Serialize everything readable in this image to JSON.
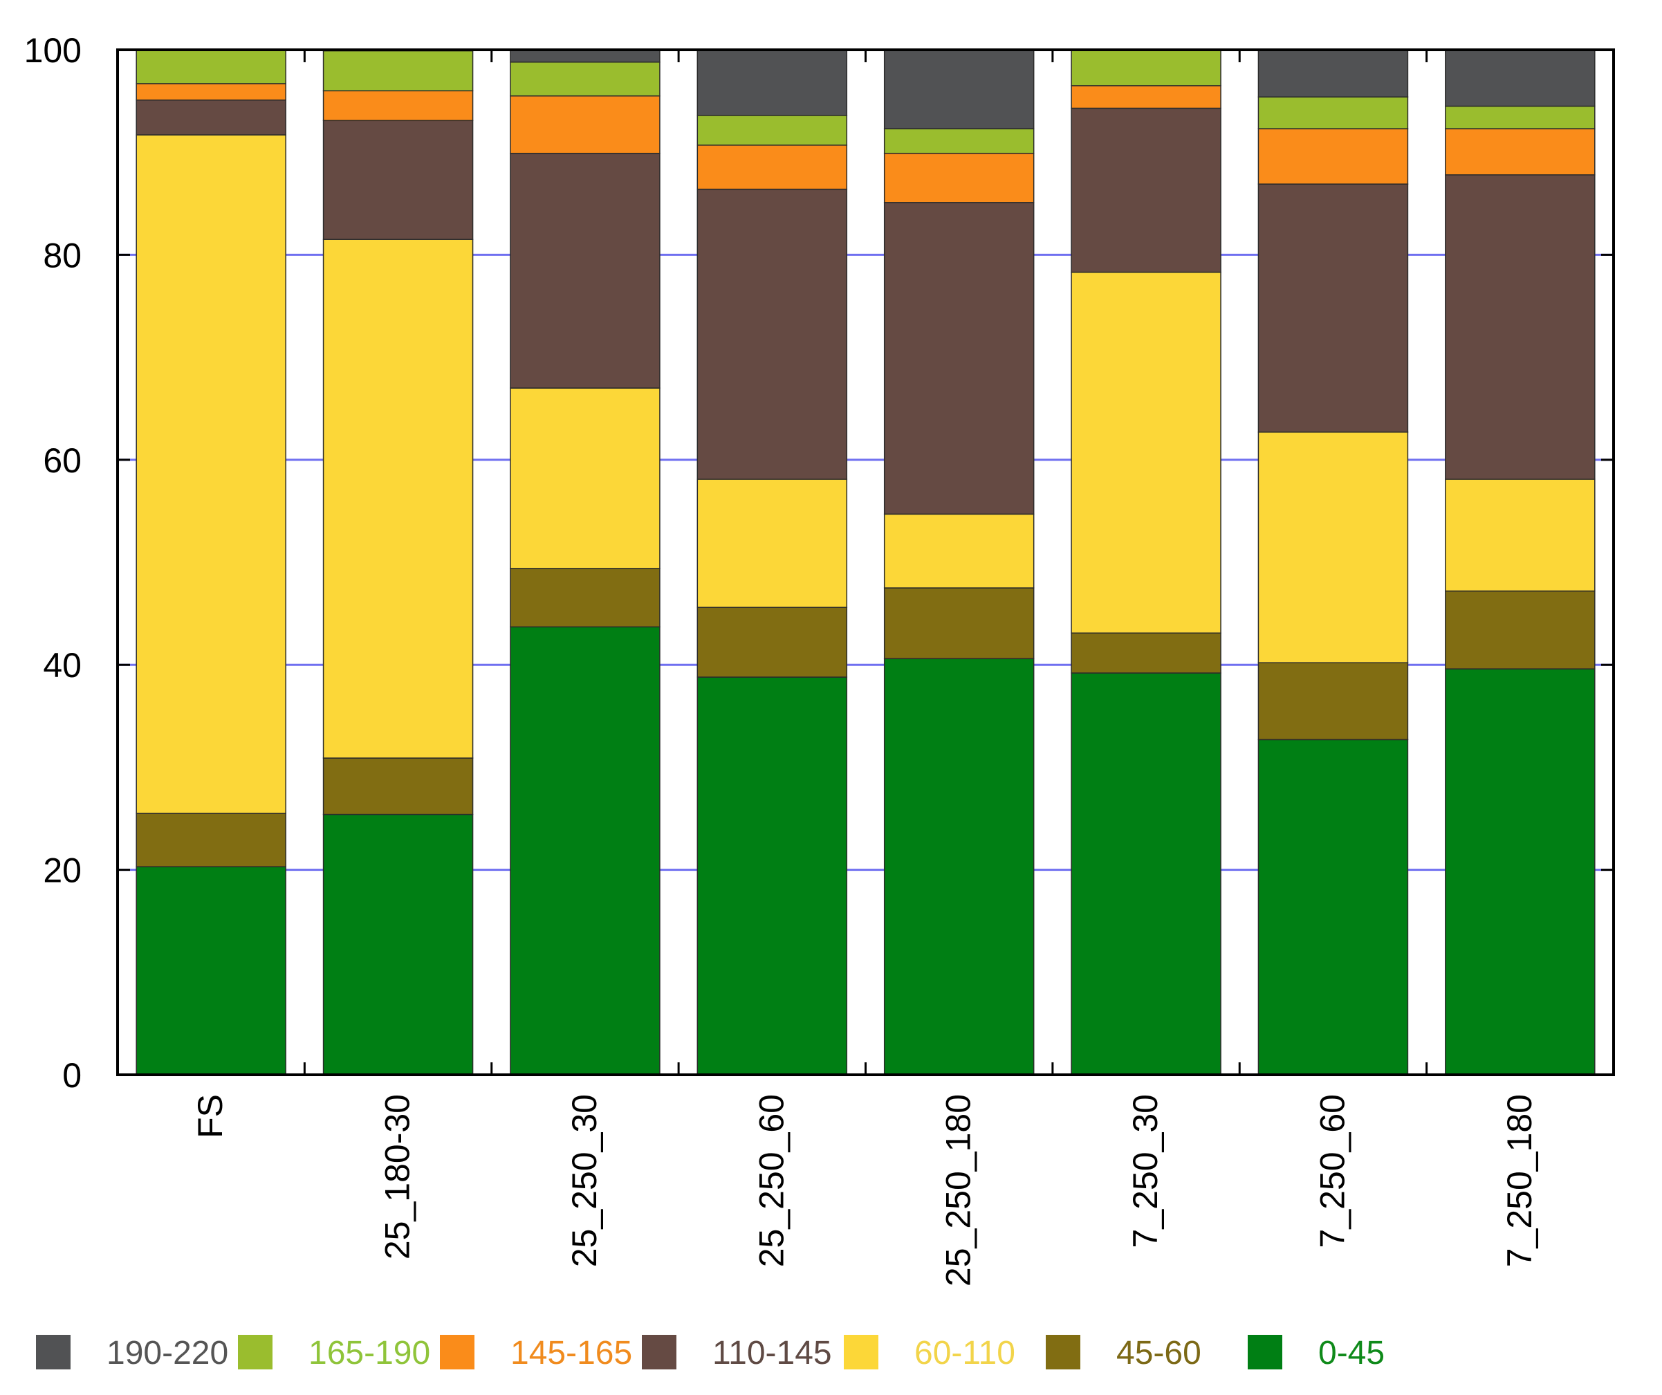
{
  "chart_data": {
    "type": "bar",
    "stacked": true,
    "title": "",
    "xlabel": "",
    "ylabel": "",
    "ylim": [
      0,
      100
    ],
    "yticks": [
      0,
      20,
      40,
      60,
      80,
      100
    ],
    "grid": true,
    "legend_position": "bottom",
    "categories": [
      "FS",
      "25_180-30",
      "25_250_30",
      "25_250_60",
      "25_250_180",
      "7_250_30",
      "7_250_60",
      "7_250_180"
    ],
    "series": [
      {
        "name": "0-45",
        "color": "#007f14",
        "values": [
          20.3,
          25.4,
          43.7,
          38.8,
          40.6,
          39.2,
          32.7,
          39.6
        ]
      },
      {
        "name": "45-60",
        "color": "#816d12",
        "values": [
          5.2,
          5.5,
          5.7,
          6.8,
          6.9,
          3.9,
          7.5,
          7.6
        ]
      },
      {
        "name": "60-110",
        "color": "#fcd738",
        "values": [
          66.2,
          50.6,
          17.6,
          12.5,
          7.2,
          35.2,
          22.5,
          10.9
        ]
      },
      {
        "name": "110-145",
        "color": "#654a43",
        "values": [
          3.4,
          11.6,
          22.9,
          28.3,
          30.4,
          16.0,
          24.2,
          29.7
        ]
      },
      {
        "name": "145-165",
        "color": "#fa8c1a",
        "values": [
          1.6,
          2.9,
          5.6,
          4.3,
          4.8,
          2.2,
          5.4,
          4.5
        ]
      },
      {
        "name": "165-190",
        "color": "#9abd2e",
        "values": [
          3.3,
          3.9,
          3.3,
          2.9,
          2.4,
          3.5,
          3.1,
          2.2
        ]
      },
      {
        "name": "190-220",
        "color": "#515254",
        "values": [
          0.0,
          0.1,
          1.2,
          6.4,
          7.7,
          0.0,
          4.6,
          5.5
        ]
      }
    ],
    "legend_order": [
      "190-220",
      "165-190",
      "145-165",
      "110-145",
      "60-110",
      "45-60",
      "0-45"
    ],
    "legend_label_colors": {
      "190-220": "#555555",
      "165-190": "#8fc43a",
      "145-165": "#f08b1e",
      "110-145": "#5f4a44",
      "60-110": "#f2d44a",
      "45-60": "#7c6916",
      "0-45": "#0f8a1a"
    }
  }
}
